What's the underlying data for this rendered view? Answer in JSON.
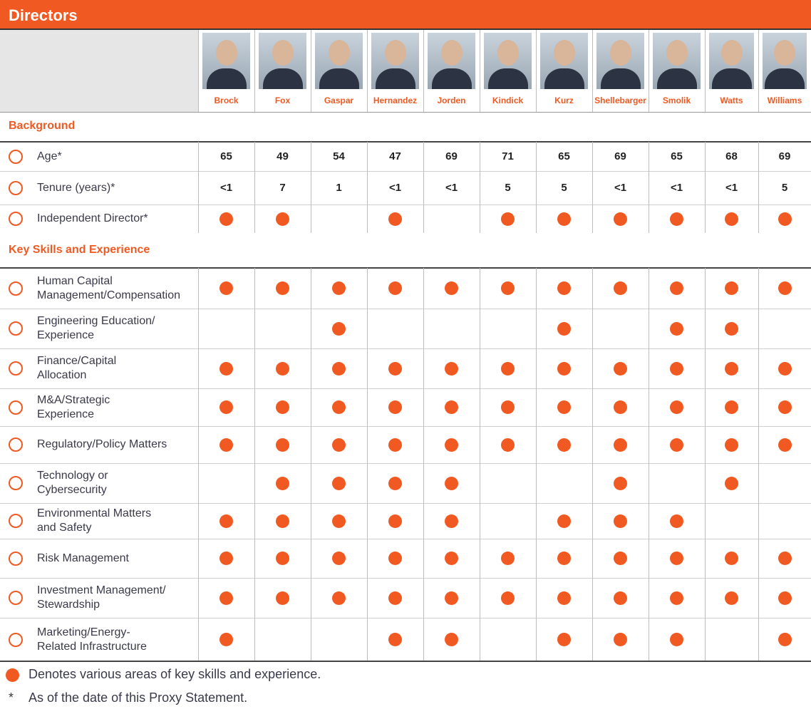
{
  "header": {
    "title": "Directors"
  },
  "directors": [
    "Brock",
    "Fox",
    "Gaspar",
    "Hernandez",
    "Jorden",
    "Kindick",
    "Kurz",
    "Shellebarger",
    "Smolik",
    "Watts",
    "Williams"
  ],
  "sections": [
    {
      "title": "Background",
      "rows": [
        {
          "label": "Age*",
          "values": [
            65,
            49,
            54,
            47,
            69,
            71,
            65,
            69,
            65,
            68,
            69
          ]
        },
        {
          "label": "Tenure (years)*",
          "values": [
            "<1",
            "7",
            "1",
            "<1",
            "<1",
            "5",
            "5",
            "<1",
            "<1",
            "<1",
            "5"
          ]
        },
        {
          "label": "Independent Director*",
          "marks": [
            true,
            true,
            false,
            true,
            false,
            true,
            true,
            true,
            true,
            true,
            true
          ]
        }
      ]
    },
    {
      "title": "Key Skills and Experience",
      "rows": [
        {
          "label": "Human Capital\nManagement/Compensation",
          "marks": [
            true,
            true,
            true,
            true,
            true,
            true,
            true,
            true,
            true,
            true,
            true
          ]
        },
        {
          "label": "Engineering Education/\nExperience",
          "marks": [
            false,
            false,
            true,
            false,
            false,
            false,
            true,
            false,
            true,
            true,
            false
          ]
        },
        {
          "label": "Finance/Capital\nAllocation",
          "marks": [
            true,
            true,
            true,
            true,
            true,
            true,
            true,
            true,
            true,
            true,
            true
          ]
        },
        {
          "label": "M&A/Strategic\nExperience",
          "marks": [
            true,
            true,
            true,
            true,
            true,
            true,
            true,
            true,
            true,
            true,
            true
          ]
        },
        {
          "label": "Regulatory/Policy Matters",
          "marks": [
            true,
            true,
            true,
            true,
            true,
            true,
            true,
            true,
            true,
            true,
            true
          ]
        },
        {
          "label": "Technology or\nCybersecurity",
          "marks": [
            false,
            true,
            true,
            true,
            true,
            false,
            false,
            true,
            false,
            true,
            false
          ]
        },
        {
          "label": "Environmental Matters\nand Safety",
          "marks": [
            true,
            true,
            true,
            true,
            true,
            false,
            true,
            true,
            true,
            false,
            false
          ]
        },
        {
          "label": "Risk Management",
          "marks": [
            true,
            true,
            true,
            true,
            true,
            true,
            true,
            true,
            true,
            true,
            true
          ]
        },
        {
          "label": "Investment Management/\nStewardship",
          "marks": [
            true,
            true,
            true,
            true,
            true,
            true,
            true,
            true,
            true,
            true,
            true
          ]
        },
        {
          "label": "Marketing/Energy-\nRelated Infrastructure",
          "marks": [
            true,
            false,
            false,
            true,
            true,
            false,
            true,
            true,
            true,
            false,
            true
          ]
        }
      ]
    }
  ],
  "footnotes": [
    {
      "text": "Denotes various areas of key skills and experience."
    },
    {
      "symbol": "*",
      "text": "As of the date of this Proxy Statement."
    }
  ]
}
